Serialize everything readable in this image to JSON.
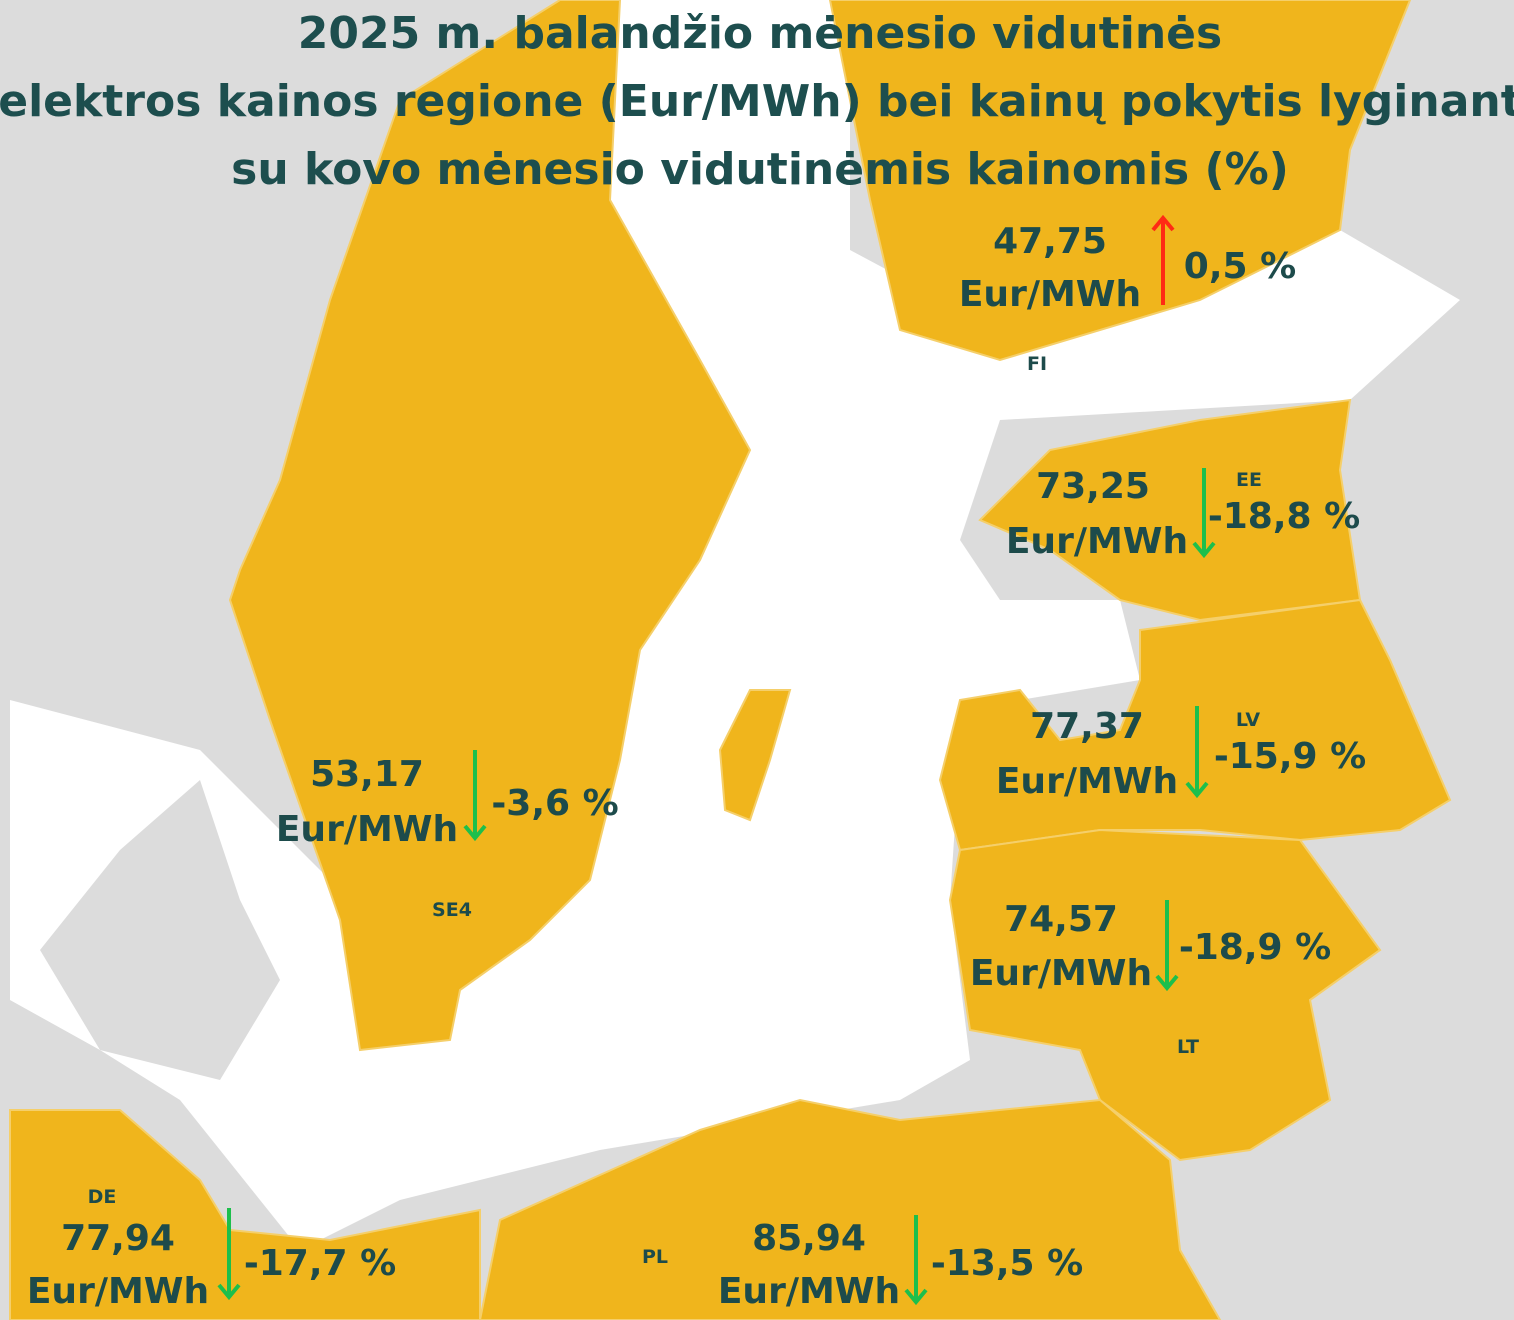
{
  "header": {
    "title": [
      "2025 m. balandžio mėnesio vidutinės",
      "elektros kainos regione (Eur/MWh) bei kainų pokytis lyginant",
      "su kovo mėnesio vidutinėmis kainomis (%)"
    ]
  },
  "regions": [
    {
      "code": "FI",
      "price": "47,75",
      "unit": "Eur/MWh",
      "change": "0,5 %"
    },
    {
      "code": "EE",
      "price": "73,25",
      "unit": "Eur/MWh",
      "change": "-18,8 %"
    },
    {
      "code": "LV",
      "price": "77,37",
      "unit": "Eur/MWh",
      "change": "-15,9 %"
    },
    {
      "code": "SE4",
      "price": "53,17",
      "unit": "Eur/MWh",
      "change": "-3,6 %"
    },
    {
      "code": "LT",
      "price": "74,57",
      "unit": "Eur/MWh",
      "change": "-18,9 %"
    },
    {
      "code": "DE",
      "price": "77,94",
      "unit": "Eur/MWh",
      "change": "-17,7 %"
    },
    {
      "code": "PL",
      "price": "85,94",
      "unit": "Eur/MWh",
      "change": "-13,5 %"
    }
  ]
}
